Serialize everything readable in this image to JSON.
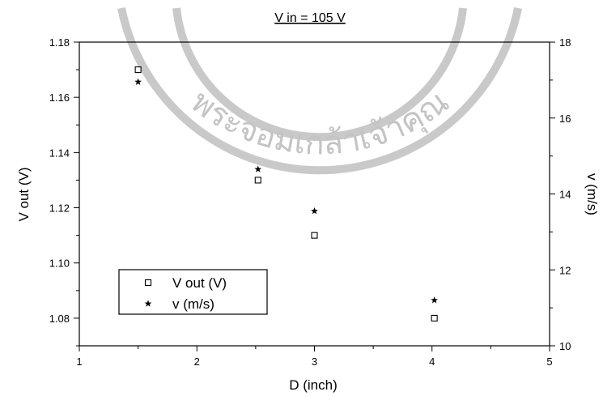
{
  "chart_data": {
    "type": "scatter",
    "title": "V in = 105 V",
    "xlabel": "D (inch)",
    "ylabel": "V out (V)",
    "y2label": "v (m/s)",
    "xlim": [
      1,
      5
    ],
    "ylim": [
      1.07,
      1.18
    ],
    "y2lim": [
      10,
      18
    ],
    "x_ticks": [
      "1",
      "2",
      "3",
      "4",
      "5"
    ],
    "y_ticks": [
      "1.08",
      "1.10",
      "1.12",
      "1.14",
      "1.16",
      "1.18"
    ],
    "y2_ticks": [
      "10",
      "12",
      "14",
      "16",
      "18"
    ],
    "legend_position": "bottom-left",
    "grid": false,
    "series": [
      {
        "name": "V out (V)",
        "axis": "left",
        "marker": "open-square",
        "x": [
          1.5,
          2.52,
          3.0,
          4.02
        ],
        "y": [
          1.17,
          1.13,
          1.11,
          1.08
        ]
      },
      {
        "name": "v (m/s)",
        "axis": "right",
        "marker": "star",
        "x": [
          1.5,
          2.52,
          3.0,
          4.02
        ],
        "y": [
          16.95,
          14.65,
          13.55,
          11.2
        ]
      }
    ]
  },
  "watermark": {
    "text": "พระจอมเกล้าเจ้าคุณ"
  }
}
